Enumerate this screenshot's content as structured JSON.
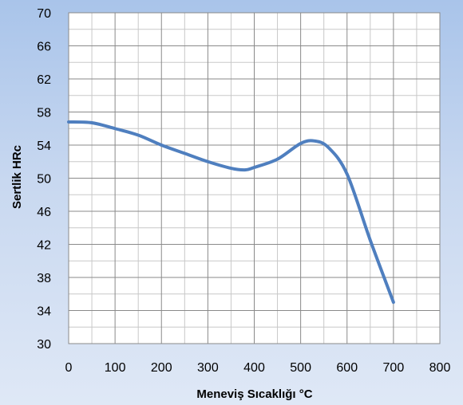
{
  "chart_data": {
    "type": "line",
    "title": "",
    "xlabel": "Meneviş Sıcaklığı °C",
    "ylabel": "Sertlik HRc",
    "xlim": [
      0,
      800
    ],
    "ylim": [
      30,
      70
    ],
    "xticks": [
      0,
      100,
      200,
      300,
      400,
      500,
      600,
      700,
      800
    ],
    "yticks": [
      30,
      34,
      38,
      42,
      46,
      50,
      54,
      58,
      62,
      66,
      70
    ],
    "grid": true,
    "legend": "none",
    "series": [
      {
        "color": "#4f7fbf",
        "x": [
          0,
          50,
          100,
          150,
          200,
          250,
          300,
          350,
          380,
          400,
          450,
          500,
          530,
          560,
          600,
          650,
          700
        ],
        "y": [
          56.8,
          56.7,
          56,
          55.2,
          54,
          53,
          52,
          51.2,
          51,
          51.3,
          52.3,
          54.2,
          54.5,
          53.7,
          50.5,
          42.5,
          35
        ]
      }
    ]
  }
}
